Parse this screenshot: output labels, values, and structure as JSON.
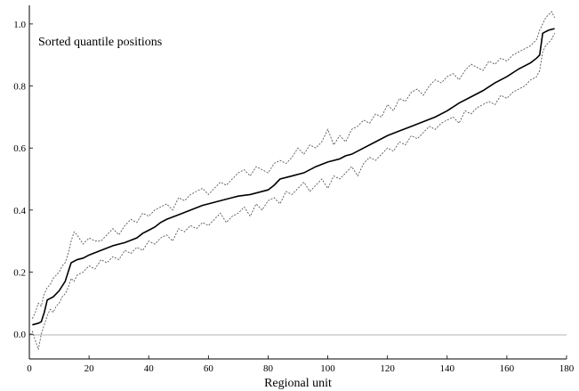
{
  "chart_data": {
    "type": "line",
    "title": "",
    "xlabel": "Regional unit",
    "ylabel": "",
    "xlim": [
      0,
      180
    ],
    "ylim": [
      -0.08,
      1.06
    ],
    "xticks": [
      0,
      20,
      40,
      60,
      80,
      100,
      120,
      140,
      160,
      180
    ],
    "yticks": [
      0.0,
      0.2,
      0.4,
      0.6,
      0.8,
      1.0
    ],
    "ytick_labels": [
      "0.0",
      "0.2",
      "0.4",
      "0.6",
      "0.8",
      "1.0"
    ],
    "grid": false,
    "reference_line_y": 0,
    "annotation": "Sorted quantile positions",
    "series": [
      {
        "style": "solid",
        "x": [
          1,
          3,
          4,
          5,
          6,
          8,
          10,
          12,
          13,
          14,
          16,
          18,
          20,
          24,
          28,
          32,
          36,
          38,
          40,
          42,
          44,
          46,
          50,
          54,
          58,
          62,
          66,
          68,
          70,
          74,
          78,
          80,
          82,
          84,
          88,
          92,
          96,
          100,
          104,
          106,
          108,
          112,
          116,
          120,
          124,
          128,
          132,
          136,
          140,
          144,
          148,
          152,
          156,
          160,
          164,
          168,
          170,
          171,
          172,
          173,
          174,
          176
        ],
        "y": [
          0.03,
          0.035,
          0.04,
          0.07,
          0.11,
          0.12,
          0.14,
          0.17,
          0.2,
          0.23,
          0.24,
          0.245,
          0.255,
          0.27,
          0.285,
          0.295,
          0.31,
          0.325,
          0.335,
          0.345,
          0.36,
          0.37,
          0.385,
          0.4,
          0.415,
          0.425,
          0.435,
          0.44,
          0.445,
          0.45,
          0.46,
          0.465,
          0.48,
          0.5,
          0.51,
          0.52,
          0.54,
          0.555,
          0.565,
          0.575,
          0.58,
          0.6,
          0.62,
          0.64,
          0.655,
          0.67,
          0.685,
          0.7,
          0.72,
          0.745,
          0.765,
          0.785,
          0.81,
          0.83,
          0.855,
          0.875,
          0.89,
          0.9,
          0.97,
          0.975,
          0.98,
          0.985
        ]
      },
      {
        "style": "dotted",
        "x": [
          1,
          2,
          3,
          4,
          5,
          6,
          7,
          8,
          9,
          10,
          11,
          12,
          13,
          14,
          15,
          16,
          18,
          20,
          22,
          24,
          26,
          28,
          30,
          32,
          34,
          36,
          38,
          40,
          42,
          44,
          46,
          48,
          50,
          52,
          54,
          56,
          58,
          60,
          62,
          64,
          66,
          68,
          70,
          72,
          74,
          76,
          78,
          80,
          82,
          84,
          86,
          88,
          90,
          92,
          94,
          96,
          98,
          100,
          102,
          104,
          106,
          108,
          110,
          112,
          114,
          116,
          118,
          120,
          122,
          124,
          126,
          128,
          130,
          132,
          134,
          136,
          138,
          140,
          142,
          144,
          146,
          148,
          150,
          152,
          154,
          156,
          158,
          160,
          162,
          164,
          166,
          168,
          170,
          171,
          172,
          173,
          174,
          175,
          176
        ],
        "y": [
          0.05,
          0.07,
          0.1,
          0.09,
          0.13,
          0.15,
          0.16,
          0.18,
          0.19,
          0.2,
          0.22,
          0.23,
          0.26,
          0.3,
          0.33,
          0.32,
          0.29,
          0.31,
          0.3,
          0.3,
          0.32,
          0.34,
          0.32,
          0.35,
          0.37,
          0.36,
          0.39,
          0.38,
          0.4,
          0.41,
          0.42,
          0.4,
          0.44,
          0.43,
          0.45,
          0.46,
          0.47,
          0.45,
          0.47,
          0.49,
          0.48,
          0.5,
          0.52,
          0.53,
          0.51,
          0.54,
          0.53,
          0.52,
          0.55,
          0.56,
          0.55,
          0.57,
          0.6,
          0.58,
          0.61,
          0.6,
          0.62,
          0.66,
          0.61,
          0.64,
          0.62,
          0.66,
          0.67,
          0.69,
          0.68,
          0.71,
          0.7,
          0.74,
          0.72,
          0.76,
          0.75,
          0.78,
          0.79,
          0.77,
          0.8,
          0.82,
          0.81,
          0.83,
          0.84,
          0.82,
          0.85,
          0.87,
          0.86,
          0.85,
          0.88,
          0.87,
          0.89,
          0.88,
          0.9,
          0.91,
          0.92,
          0.93,
          0.95,
          0.98,
          1.0,
          1.02,
          1.03,
          1.04,
          1.02
        ]
      },
      {
        "style": "dotted",
        "x": [
          1,
          2,
          3,
          4,
          5,
          6,
          7,
          8,
          9,
          10,
          11,
          12,
          13,
          14,
          15,
          16,
          18,
          20,
          22,
          24,
          26,
          28,
          30,
          32,
          34,
          36,
          38,
          40,
          42,
          44,
          46,
          48,
          50,
          52,
          54,
          56,
          58,
          60,
          62,
          64,
          66,
          68,
          70,
          72,
          74,
          76,
          78,
          80,
          82,
          84,
          86,
          88,
          90,
          92,
          94,
          96,
          98,
          100,
          102,
          104,
          106,
          108,
          110,
          112,
          114,
          116,
          118,
          120,
          122,
          124,
          126,
          128,
          130,
          132,
          134,
          136,
          138,
          140,
          142,
          144,
          146,
          148,
          150,
          152,
          154,
          156,
          158,
          160,
          162,
          164,
          166,
          168,
          170,
          171,
          172,
          173,
          174,
          175,
          176
        ],
        "y": [
          0.01,
          -0.02,
          -0.05,
          0.0,
          0.03,
          0.06,
          0.08,
          0.07,
          0.09,
          0.1,
          0.12,
          0.13,
          0.15,
          0.18,
          0.17,
          0.19,
          0.2,
          0.22,
          0.21,
          0.24,
          0.23,
          0.25,
          0.24,
          0.27,
          0.26,
          0.28,
          0.27,
          0.3,
          0.29,
          0.31,
          0.32,
          0.3,
          0.34,
          0.33,
          0.35,
          0.34,
          0.36,
          0.35,
          0.37,
          0.39,
          0.36,
          0.38,
          0.39,
          0.41,
          0.38,
          0.42,
          0.4,
          0.43,
          0.44,
          0.42,
          0.46,
          0.45,
          0.47,
          0.49,
          0.46,
          0.48,
          0.5,
          0.47,
          0.51,
          0.5,
          0.52,
          0.54,
          0.51,
          0.55,
          0.57,
          0.56,
          0.58,
          0.6,
          0.59,
          0.62,
          0.61,
          0.64,
          0.63,
          0.65,
          0.67,
          0.66,
          0.68,
          0.69,
          0.7,
          0.68,
          0.72,
          0.71,
          0.73,
          0.74,
          0.75,
          0.74,
          0.77,
          0.76,
          0.78,
          0.79,
          0.8,
          0.82,
          0.83,
          0.85,
          0.91,
          0.93,
          0.94,
          0.95,
          0.97
        ]
      }
    ]
  }
}
